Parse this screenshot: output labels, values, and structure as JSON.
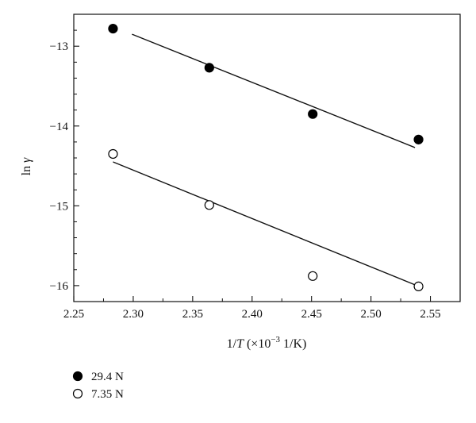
{
  "chart_data": {
    "type": "scatter",
    "xlabel": {
      "prefix": "1/",
      "var": "T",
      "suffix": " (×10",
      "exp": "−3",
      "unit": " 1/K)"
    },
    "ylabel": {
      "prefix": "ln ",
      "var": "γ"
    },
    "xlim": [
      2.25,
      2.575
    ],
    "ylim": [
      -16.2,
      -12.6
    ],
    "xticks": [
      2.25,
      2.3,
      2.35,
      2.4,
      2.45,
      2.5,
      2.55
    ],
    "xtick_labels": [
      "2.25",
      "2.30",
      "2.35",
      "2.40",
      "2.45",
      "2.50",
      "2.55"
    ],
    "yticks": [
      -13,
      -14,
      -15,
      -16
    ],
    "ytick_labels": [
      "−13",
      "−14",
      "−15",
      "−16"
    ],
    "grid": false,
    "legend_position": "below",
    "series": [
      {
        "name": "29.4 N",
        "marker": "filled-circle",
        "x": [
          2.283,
          2.364,
          2.451,
          2.54
        ],
        "y": [
          -12.78,
          -13.27,
          -13.85,
          -14.17
        ],
        "fit": {
          "x": [
            2.299,
            2.537
          ],
          "y": [
            -12.85,
            -14.27
          ]
        }
      },
      {
        "name": "7.35 N",
        "marker": "open-circle",
        "x": [
          2.283,
          2.364,
          2.451,
          2.54
        ],
        "y": [
          -14.35,
          -14.99,
          -15.88,
          -16.01
        ],
        "fit": {
          "x": [
            2.283,
            2.537
          ],
          "y": [
            -14.45,
            -15.99
          ]
        }
      }
    ]
  }
}
